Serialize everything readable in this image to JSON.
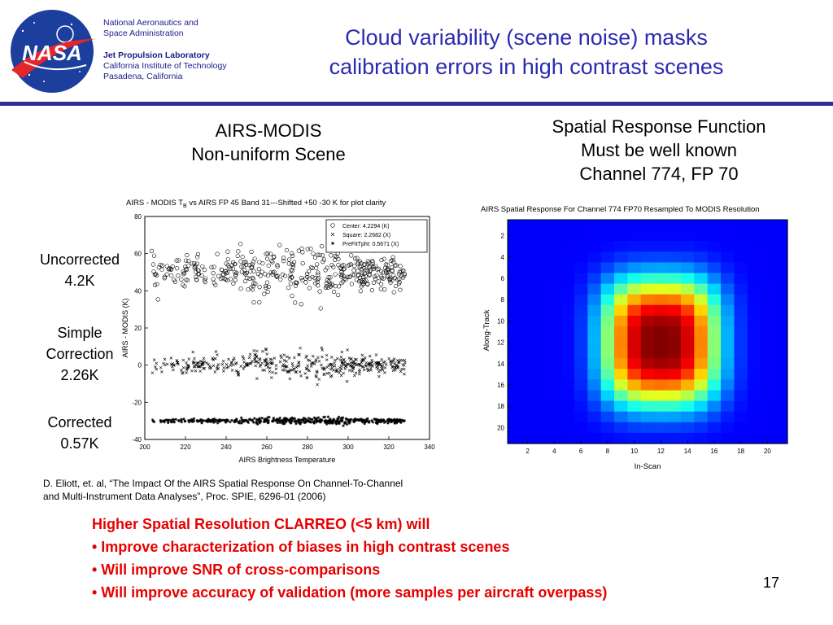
{
  "header": {
    "org_line1": "National Aeronautics and",
    "org_line2": "Space Administration",
    "lab_name": "Jet Propulsion Laboratory",
    "lab_line2": "California Institute of Technology",
    "lab_line3": "Pasadena, California",
    "logo_text": "NASA"
  },
  "title": {
    "line1": "Cloud variability (scene noise) masks",
    "line2": "calibration errors in high contrast scenes"
  },
  "left_panel": {
    "heading_line1": "AIRS-MODIS",
    "heading_line2": "Non-uniform Scene",
    "labels": {
      "uncorrected_1": "Uncorrected",
      "uncorrected_2": "4.2K",
      "simple_1": "Simple",
      "simple_2": "Correction",
      "simple_3": "2.26K",
      "corrected_1": "Corrected",
      "corrected_2": "0.57K"
    }
  },
  "right_panel": {
    "heading_line1": "Spatial Response Function",
    "heading_line2": "Must be well known",
    "heading_line3": "Channel 774, FP 70"
  },
  "citation": {
    "line1": "D. Eliott, et. al, “The Impact Of the AIRS Spatial Response On Channel-To-Channel",
    "line2": "and Multi-Instrument Data Analyses”, Proc. SPIE, 6296-01 (2006)"
  },
  "bullets": {
    "line1": "Higher Spatial Resolution CLARREO (<5 km) will",
    "line2": "• Improve characterization of biases in high contrast scenes",
    "line3": "• Will improve SNR of cross-comparisons",
    "line4": "• Will improve accuracy of validation (more samples per aircraft overpass)"
  },
  "page_number": "17",
  "chart_data": [
    {
      "type": "scatter",
      "title": "AIRS - MODIS T",
      "title_subscript": "B",
      "title_rest": " vs AIRS FP 45 Band 31---Shifted +50 -30 K for plot clarity",
      "xlabel": "AIRS Brightness Temperature",
      "ylabel": "AIRS - MODIS (K)",
      "xlim": [
        200,
        340
      ],
      "ylim": [
        -40,
        80
      ],
      "xticks": [
        "200",
        "220",
        "240",
        "260",
        "280",
        "300",
        "320",
        "340"
      ],
      "yticks": [
        "-40",
        "-20",
        "0",
        "20",
        "40",
        "60",
        "80"
      ],
      "legend_position": "top-right",
      "series": [
        {
          "name": "Center: 4.2294 (K)",
          "marker": "circle",
          "center": 50,
          "spread": 4.2,
          "xrange": [
            203,
            328
          ],
          "count": 420
        },
        {
          "name": "Square: 2.2682 (X)",
          "marker": "x",
          "center": 0,
          "spread": 2.3,
          "xrange": [
            203,
            328
          ],
          "count": 420
        },
        {
          "name": "PreFitTpht: 0.5671 (X)",
          "marker": "star",
          "center": -30,
          "spread": 0.57,
          "xrange": [
            203,
            328
          ],
          "count": 420
        }
      ]
    },
    {
      "type": "heatmap",
      "title": "AIRS Spatial Response For Channel 774 FP70 Resampled To MODIS Resolution",
      "xlabel": "In-Scan",
      "ylabel": "Along-Track",
      "xlim": [
        0.5,
        21.5
      ],
      "ylim": [
        21.5,
        0.5
      ],
      "xticks": [
        "2",
        "4",
        "6",
        "8",
        "10",
        "12",
        "14",
        "16",
        "18",
        "20"
      ],
      "yticks": [
        "2",
        "4",
        "6",
        "8",
        "10",
        "12",
        "14",
        "16",
        "18",
        "20"
      ],
      "colormap": "jet",
      "peak_x": 12,
      "peak_y": 12,
      "sigma_x": 3.2,
      "sigma_y": 4.4
    }
  ]
}
